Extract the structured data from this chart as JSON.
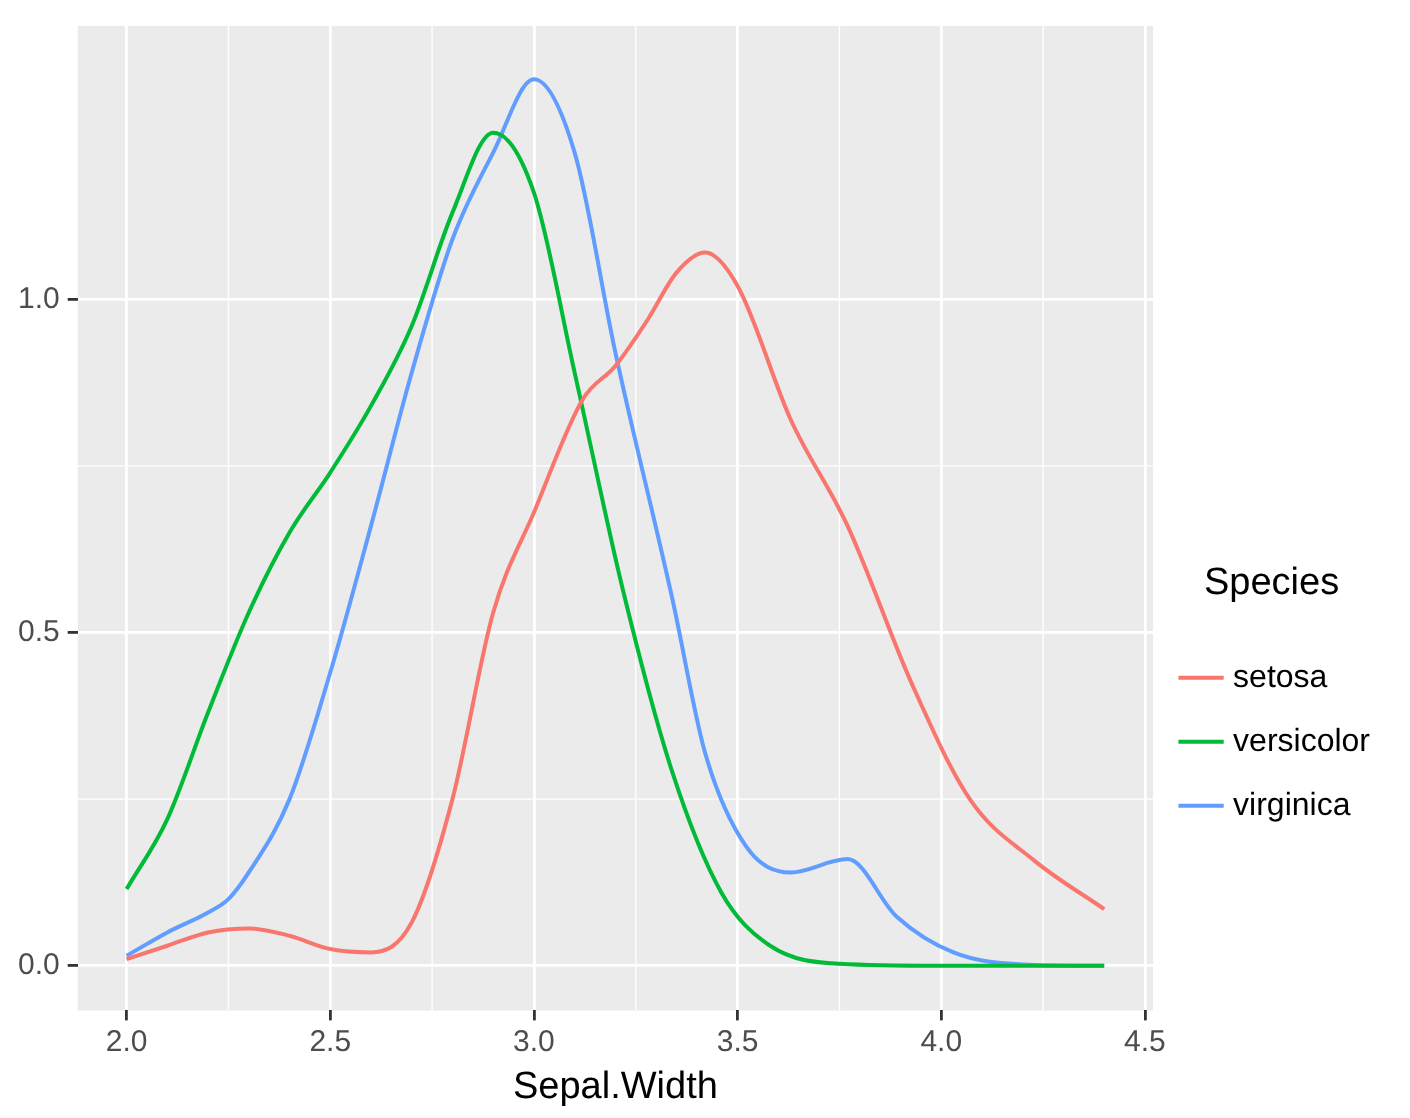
{
  "chart_data": {
    "type": "line",
    "xlabel": "Sepal.Width",
    "legend_title": "Species",
    "legend": "right",
    "grid": true,
    "xlim": [
      1.88,
      4.52
    ],
    "xticks": [
      {
        "value": 2,
        "label": "2.0"
      },
      2.5,
      {
        "value": 3,
        "label": "3.0"
      },
      3.5,
      {
        "value": 4,
        "label": "4.0"
      },
      4.5
    ],
    "ylim": [
      -0.067,
      1.41
    ],
    "yticks": [
      {
        "value": 0,
        "label": "0.0"
      },
      0.5,
      {
        "value": 1,
        "label": "1.0"
      }
    ],
    "series": [
      {
        "name": "setosa",
        "color": "#f8766d",
        "x": [
          2.0,
          2.1,
          2.2,
          2.3,
          2.4,
          2.5,
          2.6,
          2.7,
          2.8,
          2.9,
          3.0,
          3.12,
          3.2,
          3.28,
          3.35,
          3.42,
          3.5,
          3.63,
          3.77,
          3.93,
          4.07,
          4.23,
          4.4
        ],
        "values": [
          0.01,
          0.03,
          0.05,
          0.056,
          0.045,
          0.025,
          0.02,
          0.065,
          0.25,
          0.53,
          0.68,
          0.85,
          0.9,
          0.97,
          1.04,
          1.07,
          1.02,
          0.82,
          0.66,
          0.42,
          0.25,
          0.157,
          0.085
        ]
      },
      {
        "name": "versicolor",
        "color": "#00ba38",
        "x": [
          2.0,
          2.1,
          2.2,
          2.3,
          2.4,
          2.5,
          2.6,
          2.7,
          2.8,
          2.9,
          3.0,
          3.1,
          3.22,
          3.34,
          3.46,
          3.58,
          3.75,
          4.0,
          4.4
        ],
        "values": [
          0.115,
          0.22,
          0.38,
          0.53,
          0.65,
          0.74,
          0.84,
          0.96,
          1.13,
          1.25,
          1.16,
          0.89,
          0.56,
          0.29,
          0.11,
          0.03,
          0.003,
          0,
          0
        ]
      },
      {
        "name": "virginica",
        "color": "#619cff",
        "x": [
          2.0,
          2.1,
          2.2,
          2.25,
          2.3,
          2.4,
          2.5,
          2.6,
          2.7,
          2.8,
          2.9,
          3.0,
          3.1,
          3.2,
          3.34,
          3.42,
          3.52,
          3.63,
          3.77,
          3.89,
          4.03,
          4.2,
          4.4
        ],
        "values": [
          0.015,
          0.05,
          0.08,
          0.1,
          0.14,
          0.25,
          0.44,
          0.66,
          0.89,
          1.09,
          1.22,
          1.33,
          1.22,
          0.92,
          0.55,
          0.32,
          0.18,
          0.14,
          0.16,
          0.074,
          0.02,
          0.002,
          0
        ]
      }
    ]
  }
}
